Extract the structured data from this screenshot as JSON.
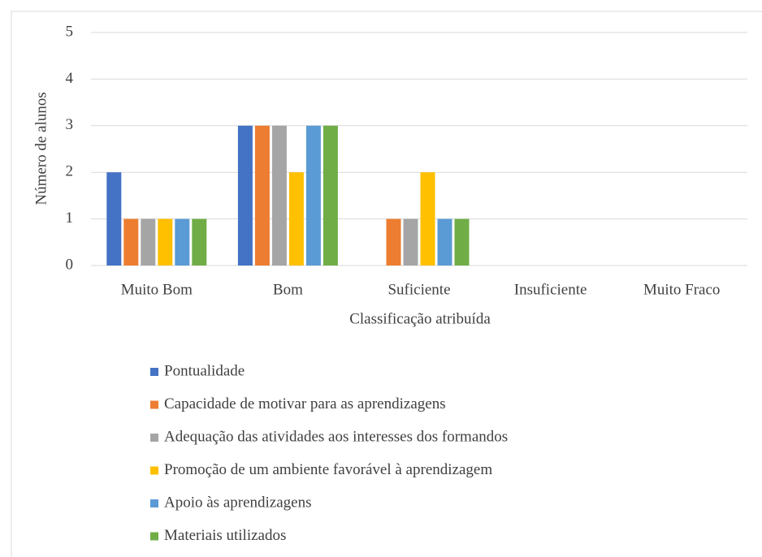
{
  "chart_data": {
    "type": "bar",
    "x_label": "Classificação atribuída",
    "y_label": "Número de alunos",
    "categories": [
      "Muito Bom",
      "Bom",
      "Suficiente",
      "Insuficiente",
      "Muito Fraco"
    ],
    "series": [
      {
        "name": "Pontualidade",
        "color": "#4472c4",
        "values": [
          2,
          3,
          0,
          0,
          0
        ]
      },
      {
        "name": "Capacidade de motivar para as aprendizagens",
        "color": "#ed7d31",
        "values": [
          1,
          3,
          1,
          0,
          0
        ]
      },
      {
        "name": "Adequação das atividades aos interesses dos formandos",
        "color": "#a5a5a5",
        "values": [
          1,
          3,
          1,
          0,
          0
        ]
      },
      {
        "name": "Promoção de um ambiente favorável à aprendizagem",
        "color": "#ffc000",
        "values": [
          1,
          2,
          2,
          0,
          0
        ]
      },
      {
        "name": "Apoio às aprendizagens",
        "color": "#5b9bd5",
        "values": [
          1,
          3,
          1,
          0,
          0
        ]
      },
      {
        "name": "Materiais utilizados",
        "color": "#70ad47",
        "values": [
          1,
          3,
          1,
          0,
          0
        ]
      }
    ],
    "ylim": [
      0,
      5
    ],
    "yticks": [
      0,
      1,
      2,
      3,
      4,
      5
    ],
    "grid": true,
    "legend": "bottom"
  }
}
